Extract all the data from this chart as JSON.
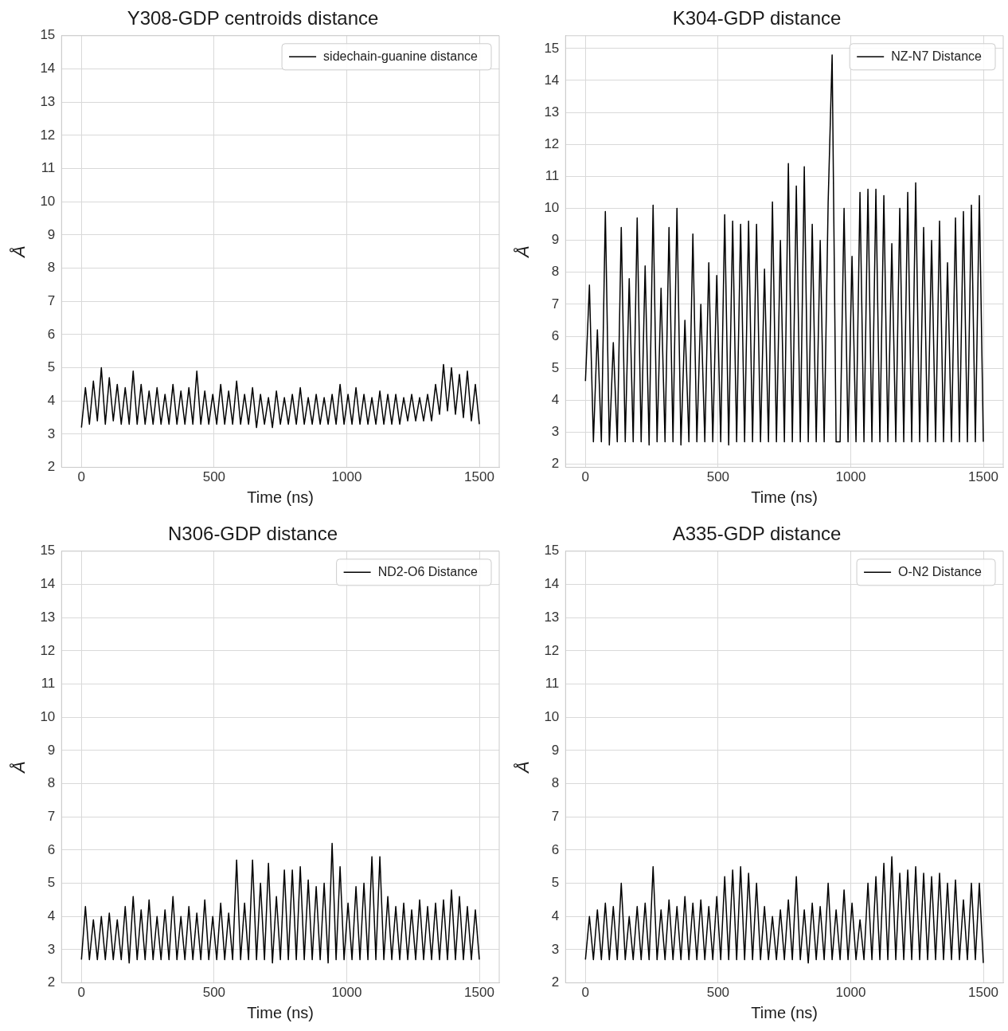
{
  "chart_data": [
    {
      "type": "line",
      "title": "Y308-GDP centroids distance",
      "xlabel": "Time (ns)",
      "ylabel": "Å",
      "x": [
        0,
        15,
        30,
        45,
        60,
        75,
        90,
        105,
        120,
        135,
        150,
        165,
        180,
        195,
        210,
        225,
        240,
        255,
        270,
        285,
        300,
        315,
        330,
        345,
        360,
        375,
        390,
        405,
        420,
        435,
        450,
        465,
        480,
        495,
        510,
        525,
        540,
        555,
        570,
        585,
        600,
        615,
        630,
        645,
        660,
        675,
        690,
        705,
        720,
        735,
        750,
        765,
        780,
        795,
        810,
        825,
        840,
        855,
        870,
        885,
        900,
        915,
        930,
        945,
        960,
        975,
        990,
        1005,
        1020,
        1035,
        1050,
        1065,
        1080,
        1095,
        1110,
        1125,
        1140,
        1155,
        1170,
        1185,
        1200,
        1215,
        1230,
        1245,
        1260,
        1275,
        1290,
        1305,
        1320,
        1335,
        1350,
        1365,
        1380,
        1395,
        1410,
        1425,
        1440,
        1455,
        1470,
        1485,
        1500
      ],
      "series": [
        {
          "name": "sidechain-guanine distance",
          "color": "#000000",
          "values": [
            3.2,
            4.4,
            3.3,
            4.6,
            3.4,
            5.0,
            3.3,
            4.7,
            3.4,
            4.5,
            3.3,
            4.4,
            3.3,
            4.9,
            3.3,
            4.5,
            3.3,
            4.3,
            3.3,
            4.4,
            3.3,
            4.2,
            3.3,
            4.5,
            3.3,
            4.3,
            3.3,
            4.4,
            3.3,
            4.9,
            3.3,
            4.3,
            3.3,
            4.2,
            3.3,
            4.5,
            3.3,
            4.3,
            3.3,
            4.6,
            3.3,
            4.2,
            3.3,
            4.4,
            3.2,
            4.2,
            3.3,
            4.1,
            3.2,
            4.3,
            3.3,
            4.1,
            3.3,
            4.2,
            3.3,
            4.4,
            3.3,
            4.1,
            3.3,
            4.2,
            3.3,
            4.1,
            3.3,
            4.2,
            3.3,
            4.5,
            3.3,
            4.2,
            3.3,
            4.4,
            3.3,
            4.2,
            3.3,
            4.1,
            3.3,
            4.3,
            3.3,
            4.2,
            3.3,
            4.2,
            3.3,
            4.1,
            3.4,
            4.2,
            3.4,
            4.1,
            3.4,
            4.2,
            3.4,
            4.5,
            3.6,
            5.1,
            3.7,
            5.0,
            3.6,
            4.8,
            3.5,
            4.9,
            3.4,
            4.5,
            3.3
          ]
        }
      ],
      "xlim": [
        -75,
        1575
      ],
      "ylim": [
        2,
        15
      ],
      "xticks": [
        0,
        500,
        1000,
        1500
      ],
      "yticks": [
        2,
        3,
        4,
        5,
        6,
        7,
        8,
        9,
        10,
        11,
        12,
        13,
        14,
        15
      ],
      "grid": true,
      "legend": "top right",
      "marker": "none",
      "line_style": "solid"
    },
    {
      "type": "line",
      "title": "K304-GDP distance",
      "xlabel": "Time (ns)",
      "ylabel": "Å",
      "x": [
        0,
        15,
        30,
        45,
        60,
        75,
        90,
        105,
        120,
        135,
        150,
        165,
        180,
        195,
        210,
        225,
        240,
        255,
        270,
        285,
        300,
        315,
        330,
        345,
        360,
        375,
        390,
        405,
        420,
        435,
        450,
        465,
        480,
        495,
        510,
        525,
        540,
        555,
        570,
        585,
        600,
        615,
        630,
        645,
        660,
        675,
        690,
        705,
        720,
        735,
        750,
        765,
        780,
        795,
        810,
        825,
        840,
        855,
        870,
        885,
        900,
        915,
        930,
        945,
        960,
        975,
        990,
        1005,
        1020,
        1035,
        1050,
        1065,
        1080,
        1095,
        1110,
        1125,
        1140,
        1155,
        1170,
        1185,
        1200,
        1215,
        1230,
        1245,
        1260,
        1275,
        1290,
        1305,
        1320,
        1335,
        1350,
        1365,
        1380,
        1395,
        1410,
        1425,
        1440,
        1455,
        1470,
        1485,
        1500
      ],
      "series": [
        {
          "name": "NZ-N7 Distance",
          "color": "#000000",
          "values": [
            4.6,
            7.6,
            2.7,
            6.2,
            2.7,
            9.9,
            2.6,
            5.8,
            2.7,
            9.4,
            2.7,
            7.8,
            2.7,
            9.7,
            2.7,
            8.2,
            2.6,
            10.1,
            2.7,
            7.5,
            2.7,
            9.4,
            2.7,
            10.0,
            2.6,
            6.5,
            2.7,
            9.2,
            2.7,
            7.0,
            2.7,
            8.3,
            2.7,
            7.9,
            2.7,
            9.8,
            2.6,
            9.6,
            2.7,
            9.5,
            2.7,
            9.6,
            2.7,
            9.5,
            2.7,
            8.1,
            2.7,
            10.2,
            2.7,
            9.0,
            2.7,
            11.4,
            2.7,
            10.7,
            2.7,
            11.3,
            2.7,
            9.5,
            2.7,
            9.0,
            2.7,
            10.2,
            14.8,
            2.7,
            2.7,
            10.0,
            2.7,
            8.5,
            2.7,
            10.5,
            2.7,
            10.6,
            2.7,
            10.6,
            2.7,
            10.4,
            2.7,
            8.9,
            2.7,
            10.0,
            2.7,
            10.5,
            2.7,
            10.8,
            2.7,
            9.4,
            2.7,
            9.0,
            2.7,
            9.6,
            2.7,
            8.3,
            2.7,
            9.7,
            2.7,
            9.9,
            2.7,
            10.1,
            2.7,
            10.4,
            2.7
          ]
        }
      ],
      "xlim": [
        -75,
        1575
      ],
      "ylim": [
        1.9,
        15.4
      ],
      "xticks": [
        0,
        500,
        1000,
        1500
      ],
      "yticks": [
        2,
        3,
        4,
        5,
        6,
        7,
        8,
        9,
        10,
        11,
        12,
        13,
        14,
        15
      ],
      "grid": true,
      "legend": "top right",
      "marker": "none",
      "line_style": "solid"
    },
    {
      "type": "line",
      "title": "N306-GDP distance",
      "xlabel": "Time (ns)",
      "ylabel": "Å",
      "x": [
        0,
        15,
        30,
        45,
        60,
        75,
        90,
        105,
        120,
        135,
        150,
        165,
        180,
        195,
        210,
        225,
        240,
        255,
        270,
        285,
        300,
        315,
        330,
        345,
        360,
        375,
        390,
        405,
        420,
        435,
        450,
        465,
        480,
        495,
        510,
        525,
        540,
        555,
        570,
        585,
        600,
        615,
        630,
        645,
        660,
        675,
        690,
        705,
        720,
        735,
        750,
        765,
        780,
        795,
        810,
        825,
        840,
        855,
        870,
        885,
        900,
        915,
        930,
        945,
        960,
        975,
        990,
        1005,
        1020,
        1035,
        1050,
        1065,
        1080,
        1095,
        1110,
        1125,
        1140,
        1155,
        1170,
        1185,
        1200,
        1215,
        1230,
        1245,
        1260,
        1275,
        1290,
        1305,
        1320,
        1335,
        1350,
        1365,
        1380,
        1395,
        1410,
        1425,
        1440,
        1455,
        1470,
        1485,
        1500
      ],
      "series": [
        {
          "name": "ND2-O6 Distance",
          "color": "#000000",
          "values": [
            2.7,
            4.3,
            2.7,
            3.9,
            2.7,
            4.0,
            2.7,
            4.1,
            2.7,
            3.9,
            2.7,
            4.3,
            2.6,
            4.6,
            2.7,
            4.2,
            2.7,
            4.5,
            2.7,
            4.0,
            2.7,
            4.2,
            2.7,
            4.6,
            2.7,
            4.0,
            2.7,
            4.3,
            2.7,
            4.1,
            2.7,
            4.5,
            2.7,
            4.0,
            2.7,
            4.4,
            2.7,
            4.1,
            2.7,
            5.7,
            2.7,
            4.4,
            2.7,
            5.7,
            2.7,
            5.0,
            2.7,
            5.6,
            2.6,
            4.6,
            2.7,
            5.4,
            2.7,
            5.4,
            2.7,
            5.5,
            2.7,
            5.1,
            2.7,
            4.9,
            2.7,
            5.0,
            2.6,
            6.2,
            2.7,
            5.5,
            2.7,
            4.4,
            2.7,
            4.9,
            2.7,
            5.0,
            2.7,
            5.8,
            2.7,
            5.8,
            2.7,
            4.6,
            2.7,
            4.3,
            2.7,
            4.4,
            2.7,
            4.2,
            2.7,
            4.5,
            2.7,
            4.3,
            2.7,
            4.4,
            2.7,
            4.5,
            2.7,
            4.8,
            2.7,
            4.6,
            2.7,
            4.3,
            2.7,
            4.2,
            2.7
          ]
        }
      ],
      "xlim": [
        -75,
        1575
      ],
      "ylim": [
        2,
        15
      ],
      "xticks": [
        0,
        500,
        1000,
        1500
      ],
      "yticks": [
        2,
        3,
        4,
        5,
        6,
        7,
        8,
        9,
        10,
        11,
        12,
        13,
        14,
        15
      ],
      "grid": true,
      "legend": "top right",
      "marker": "none",
      "line_style": "solid"
    },
    {
      "type": "line",
      "title": "A335-GDP distance",
      "xlabel": "Time (ns)",
      "ylabel": "Å",
      "x": [
        0,
        15,
        30,
        45,
        60,
        75,
        90,
        105,
        120,
        135,
        150,
        165,
        180,
        195,
        210,
        225,
        240,
        255,
        270,
        285,
        300,
        315,
        330,
        345,
        360,
        375,
        390,
        405,
        420,
        435,
        450,
        465,
        480,
        495,
        510,
        525,
        540,
        555,
        570,
        585,
        600,
        615,
        630,
        645,
        660,
        675,
        690,
        705,
        720,
        735,
        750,
        765,
        780,
        795,
        810,
        825,
        840,
        855,
        870,
        885,
        900,
        915,
        930,
        945,
        960,
        975,
        990,
        1005,
        1020,
        1035,
        1050,
        1065,
        1080,
        1095,
        1110,
        1125,
        1140,
        1155,
        1170,
        1185,
        1200,
        1215,
        1230,
        1245,
        1260,
        1275,
        1290,
        1305,
        1320,
        1335,
        1350,
        1365,
        1380,
        1395,
        1410,
        1425,
        1440,
        1455,
        1470,
        1485,
        1500
      ],
      "series": [
        {
          "name": "O-N2 Distance",
          "color": "#000000",
          "values": [
            2.7,
            4.0,
            2.7,
            4.2,
            2.7,
            4.4,
            2.7,
            4.3,
            2.7,
            5.0,
            2.7,
            4.0,
            2.7,
            4.3,
            2.7,
            4.4,
            2.7,
            5.5,
            2.7,
            4.2,
            2.7,
            4.5,
            2.7,
            4.3,
            2.7,
            4.6,
            2.7,
            4.4,
            2.7,
            4.5,
            2.7,
            4.3,
            2.7,
            4.6,
            2.7,
            5.2,
            2.7,
            5.4,
            2.7,
            5.5,
            2.7,
            5.3,
            2.7,
            5.0,
            2.7,
            4.3,
            2.7,
            4.0,
            2.7,
            4.2,
            2.7,
            4.5,
            2.7,
            5.2,
            2.7,
            4.2,
            2.6,
            4.4,
            2.7,
            4.3,
            2.7,
            5.0,
            2.7,
            4.2,
            2.7,
            4.8,
            2.7,
            4.4,
            2.7,
            3.9,
            2.7,
            5.0,
            2.7,
            5.2,
            2.7,
            5.6,
            2.7,
            5.8,
            2.7,
            5.3,
            2.7,
            5.4,
            2.7,
            5.5,
            2.7,
            5.3,
            2.7,
            5.2,
            2.7,
            5.3,
            2.7,
            5.0,
            2.7,
            5.1,
            2.7,
            4.5,
            2.7,
            5.0,
            2.7,
            5.0,
            2.6
          ]
        }
      ],
      "xlim": [
        -75,
        1575
      ],
      "ylim": [
        2,
        15
      ],
      "xticks": [
        0,
        500,
        1000,
        1500
      ],
      "yticks": [
        2,
        3,
        4,
        5,
        6,
        7,
        8,
        9,
        10,
        11,
        12,
        13,
        14,
        15
      ],
      "grid": true,
      "legend": "top right",
      "marker": "none",
      "line_style": "solid"
    }
  ]
}
